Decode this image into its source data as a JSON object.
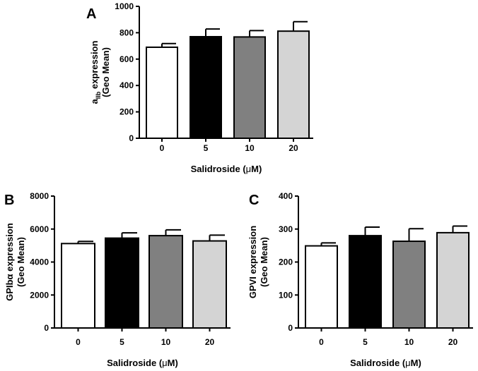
{
  "chart_data": [
    {
      "panel": "A",
      "type": "bar",
      "categories": [
        "0",
        "5",
        "10",
        "20"
      ],
      "values": [
        690,
        770,
        768,
        812
      ],
      "errors": [
        28,
        58,
        48,
        72
      ],
      "colors": [
        "#ffffff",
        "#000000",
        "#808080",
        "#d4d4d4"
      ],
      "xlabel_main": "Salidroside (",
      "xlabel_mu": "μ",
      "xlabel_end": "M)",
      "ylabel_line1_main": "a",
      "ylabel_line1_sub": "IIb",
      "ylabel_line1_rest": " expression",
      "ylabel_line2": "(Geo Mean)",
      "ylim": [
        0,
        1000
      ],
      "yticks": [
        "0",
        "200",
        "400",
        "600",
        "800",
        "1000"
      ]
    },
    {
      "panel": "B",
      "type": "bar",
      "categories": [
        "0",
        "5",
        "10",
        "20"
      ],
      "values": [
        5120,
        5450,
        5600,
        5280
      ],
      "errors": [
        130,
        320,
        350,
        350
      ],
      "colors": [
        "#ffffff",
        "#000000",
        "#808080",
        "#d4d4d4"
      ],
      "xlabel_main": "Salidroside (",
      "xlabel_mu": "μ",
      "xlabel_end": "M)",
      "ylabel_line1_main": "GPIbα",
      "ylabel_line1_sub": "",
      "ylabel_line1_rest": " expression",
      "ylabel_line2": "(Geo Mean)",
      "ylim": [
        0,
        8000
      ],
      "yticks": [
        "0",
        "2000",
        "4000",
        "6000",
        "8000"
      ]
    },
    {
      "panel": "C",
      "type": "bar",
      "categories": [
        "0",
        "5",
        "10",
        "20"
      ],
      "values": [
        249,
        280,
        263,
        289
      ],
      "errors": [
        9,
        26,
        38,
        20
      ],
      "colors": [
        "#ffffff",
        "#000000",
        "#808080",
        "#d4d4d4"
      ],
      "xlabel_main": "Salidroside (",
      "xlabel_mu": "μ",
      "xlabel_end": "M)",
      "ylabel_line1_main": "GPVI",
      "ylabel_line1_sub": "",
      "ylabel_line1_rest": " expression",
      "ylabel_line2": "(Geo Mean)",
      "ylim": [
        0,
        400
      ],
      "yticks": [
        "0",
        "100",
        "200",
        "300",
        "400"
      ]
    }
  ]
}
